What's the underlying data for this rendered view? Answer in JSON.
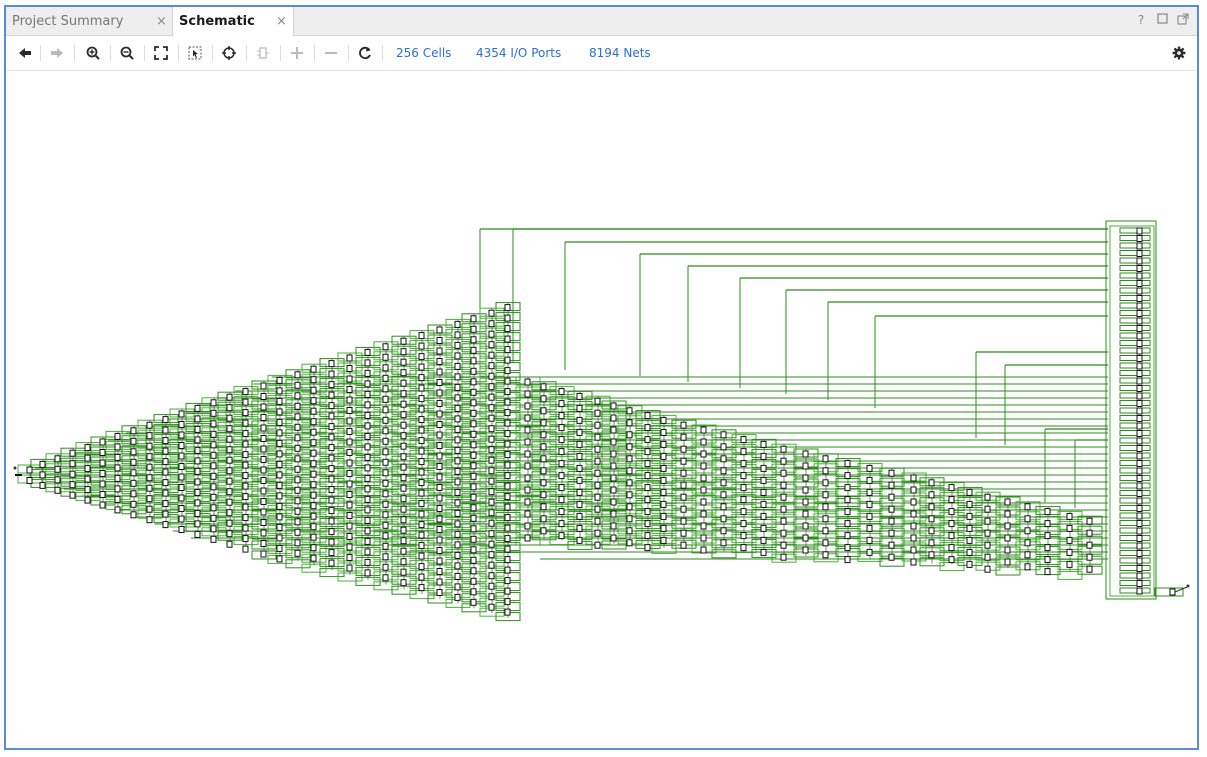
{
  "tabs": [
    {
      "label": "Project Summary",
      "close": "×"
    },
    {
      "label": "Schematic",
      "close": "×"
    }
  ],
  "window_buttons": [
    "?",
    "restore-icon",
    "float-icon"
  ],
  "toolbar": {
    "icons": [
      "back-arrow-icon",
      "forward-arrow-icon",
      "zoom-in-icon",
      "zoom-out-icon",
      "zoom-fit-icon",
      "zoom-selection-icon",
      "crosshair-icon",
      "module-icon",
      "expand-plus-icon",
      "collapse-minus-icon",
      "refresh-icon",
      "settings-gear-icon"
    ],
    "stats": {
      "cells": "256 Cells",
      "ports": "4354 I/O Ports",
      "nets": "8194 Nets"
    }
  },
  "colors": {
    "accent": "#2c6fd6",
    "frame": "#5b8bd4",
    "wire": "#2e8b1e",
    "wire_light": "#4caf3a",
    "cell": "#111111"
  }
}
